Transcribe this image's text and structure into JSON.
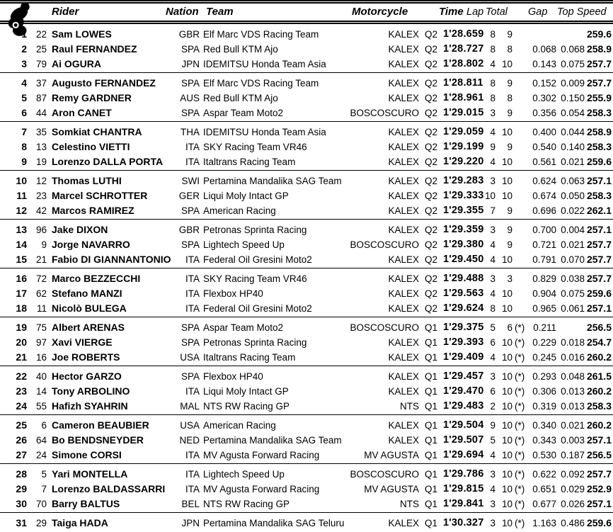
{
  "header": {
    "rider": "Rider",
    "nation": "Nation",
    "team": "Team",
    "motorcycle": "Motorcycle",
    "time": "Time",
    "lap": "Lap",
    "total": "Total",
    "gap": "Gap",
    "top_speed": "Top Speed",
    "icon": "motorcycle-racer-icon"
  },
  "colors": {
    "text": "#000000",
    "background": "#ffffff",
    "rules": "#000000"
  },
  "rows": [
    {
      "pos": "1",
      "num": "22",
      "rider": "Sam LOWES",
      "nation": "GBR",
      "team": "Elf Marc VDS Racing Team",
      "bike": "KALEX",
      "session": "Q2",
      "time": "1'28.659",
      "lap": "8",
      "total": "9",
      "star": "",
      "gap1": "",
      "gap2": "",
      "speed": "259.6"
    },
    {
      "pos": "2",
      "num": "25",
      "rider": "Raul FERNANDEZ",
      "nation": "SPA",
      "team": "Red Bull KTM Ajo",
      "bike": "KALEX",
      "session": "Q2",
      "time": "1'28.727",
      "lap": "8",
      "total": "8",
      "star": "",
      "gap1": "0.068",
      "gap2": "0.068",
      "speed": "258.9"
    },
    {
      "pos": "3",
      "num": "79",
      "rider": "Ai OGURA",
      "nation": "JPN",
      "team": "IDEMITSU Honda Team Asia",
      "bike": "KALEX",
      "session": "Q2",
      "time": "1'28.802",
      "lap": "4",
      "total": "10",
      "star": "",
      "gap1": "0.143",
      "gap2": "0.075",
      "speed": "257.7"
    },
    {
      "pos": "4",
      "num": "37",
      "rider": "Augusto FERNANDEZ",
      "nation": "SPA",
      "team": "Elf Marc VDS Racing Team",
      "bike": "KALEX",
      "session": "Q2",
      "time": "1'28.811",
      "lap": "8",
      "total": "9",
      "star": "",
      "gap1": "0.152",
      "gap2": "0.009",
      "speed": "257.7"
    },
    {
      "pos": "5",
      "num": "87",
      "rider": "Remy GARDNER",
      "nation": "AUS",
      "team": "Red Bull KTM Ajo",
      "bike": "KALEX",
      "session": "Q2",
      "time": "1'28.961",
      "lap": "8",
      "total": "8",
      "star": "",
      "gap1": "0.302",
      "gap2": "0.150",
      "speed": "255.9"
    },
    {
      "pos": "6",
      "num": "44",
      "rider": "Aron CANET",
      "nation": "SPA",
      "team": "Aspar Team Moto2",
      "bike": "BOSCOSCURO",
      "session": "Q2",
      "time": "1'29.015",
      "lap": "3",
      "total": "9",
      "star": "",
      "gap1": "0.356",
      "gap2": "0.054",
      "speed": "258.3"
    },
    {
      "pos": "7",
      "num": "35",
      "rider": "Somkiat CHANTRA",
      "nation": "THA",
      "team": "IDEMITSU Honda Team Asia",
      "bike": "KALEX",
      "session": "Q2",
      "time": "1'29.059",
      "lap": "4",
      "total": "10",
      "star": "",
      "gap1": "0.400",
      "gap2": "0.044",
      "speed": "258.9"
    },
    {
      "pos": "8",
      "num": "13",
      "rider": "Celestino VIETTI",
      "nation": "ITA",
      "team": "SKY Racing Team VR46",
      "bike": "KALEX",
      "session": "Q2",
      "time": "1'29.199",
      "lap": "9",
      "total": "9",
      "star": "",
      "gap1": "0.540",
      "gap2": "0.140",
      "speed": "258.3"
    },
    {
      "pos": "9",
      "num": "19",
      "rider": "Lorenzo DALLA PORTA",
      "nation": "ITA",
      "team": "Italtrans Racing Team",
      "bike": "KALEX",
      "session": "Q2",
      "time": "1'29.220",
      "lap": "4",
      "total": "10",
      "star": "",
      "gap1": "0.561",
      "gap2": "0.021",
      "speed": "259.6"
    },
    {
      "pos": "10",
      "num": "12",
      "rider": "Thomas LUTHI",
      "nation": "SWI",
      "team": "Pertamina Mandalika SAG Team",
      "bike": "KALEX",
      "session": "Q2",
      "time": "1'29.283",
      "lap": "3",
      "total": "10",
      "star": "",
      "gap1": "0.624",
      "gap2": "0.063",
      "speed": "257.1"
    },
    {
      "pos": "11",
      "num": "23",
      "rider": "Marcel SCHROTTER",
      "nation": "GER",
      "team": "Liqui Moly Intact GP",
      "bike": "KALEX",
      "session": "Q2",
      "time": "1'29.333",
      "lap": "10",
      "total": "10",
      "star": "",
      "gap1": "0.674",
      "gap2": "0.050",
      "speed": "258.3"
    },
    {
      "pos": "12",
      "num": "42",
      "rider": "Marcos RAMIREZ",
      "nation": "SPA",
      "team": "American Racing",
      "bike": "KALEX",
      "session": "Q2",
      "time": "1'29.355",
      "lap": "7",
      "total": "9",
      "star": "",
      "gap1": "0.696",
      "gap2": "0.022",
      "speed": "262.1"
    },
    {
      "pos": "13",
      "num": "96",
      "rider": "Jake DIXON",
      "nation": "GBR",
      "team": "Petronas Sprinta Racing",
      "bike": "KALEX",
      "session": "Q2",
      "time": "1'29.359",
      "lap": "3",
      "total": "9",
      "star": "",
      "gap1": "0.700",
      "gap2": "0.004",
      "speed": "257.1"
    },
    {
      "pos": "14",
      "num": "9",
      "rider": "Jorge NAVARRO",
      "nation": "SPA",
      "team": "Lightech Speed Up",
      "bike": "BOSCOSCURO",
      "session": "Q2",
      "time": "1'29.380",
      "lap": "4",
      "total": "9",
      "star": "",
      "gap1": "0.721",
      "gap2": "0.021",
      "speed": "257.7"
    },
    {
      "pos": "15",
      "num": "21",
      "rider": "Fabio DI GIANNANTONIO",
      "nation": "ITA",
      "team": "Federal Oil Gresini Moto2",
      "bike": "KALEX",
      "session": "Q2",
      "time": "1'29.450",
      "lap": "4",
      "total": "10",
      "star": "",
      "gap1": "0.791",
      "gap2": "0.070",
      "speed": "257.7"
    },
    {
      "pos": "16",
      "num": "72",
      "rider": "Marco BEZZECCHI",
      "nation": "ITA",
      "team": "SKY Racing Team VR46",
      "bike": "KALEX",
      "session": "Q2",
      "time": "1'29.488",
      "lap": "3",
      "total": "3",
      "star": "",
      "gap1": "0.829",
      "gap2": "0.038",
      "speed": "257.7"
    },
    {
      "pos": "17",
      "num": "62",
      "rider": "Stefano MANZI",
      "nation": "ITA",
      "team": "Flexbox HP40",
      "bike": "KALEX",
      "session": "Q2",
      "time": "1'29.563",
      "lap": "4",
      "total": "10",
      "star": "",
      "gap1": "0.904",
      "gap2": "0.075",
      "speed": "259.6"
    },
    {
      "pos": "18",
      "num": "11",
      "rider": "Nicolò BULEGA",
      "nation": "ITA",
      "team": "Federal Oil Gresini Moto2",
      "bike": "KALEX",
      "session": "Q2",
      "time": "1'29.624",
      "lap": "8",
      "total": "10",
      "star": "",
      "gap1": "0.965",
      "gap2": "0.061",
      "speed": "257.1"
    },
    {
      "pos": "19",
      "num": "75",
      "rider": "Albert ARENAS",
      "nation": "SPA",
      "team": "Aspar Team Moto2",
      "bike": "BOSCOSCURO",
      "session": "Q1",
      "time": "1'29.375",
      "lap": "5",
      "total": "6",
      "star": "(*)",
      "gap1": "0.211",
      "gap2": "",
      "speed": "256.5"
    },
    {
      "pos": "20",
      "num": "97",
      "rider": "Xavi VIERGE",
      "nation": "SPA",
      "team": "Petronas Sprinta Racing",
      "bike": "KALEX",
      "session": "Q1",
      "time": "1'29.393",
      "lap": "6",
      "total": "10",
      "star": "(*)",
      "gap1": "0.229",
      "gap2": "0.018",
      "speed": "254.7"
    },
    {
      "pos": "21",
      "num": "16",
      "rider": "Joe ROBERTS",
      "nation": "USA",
      "team": "Italtrans Racing Team",
      "bike": "KALEX",
      "session": "Q1",
      "time": "1'29.409",
      "lap": "4",
      "total": "10",
      "star": "(*)",
      "gap1": "0.245",
      "gap2": "0.016",
      "speed": "260.2"
    },
    {
      "pos": "22",
      "num": "40",
      "rider": "Hector GARZO",
      "nation": "SPA",
      "team": "Flexbox HP40",
      "bike": "KALEX",
      "session": "Q1",
      "time": "1'29.457",
      "lap": "3",
      "total": "10",
      "star": "(*)",
      "gap1": "0.293",
      "gap2": "0.048",
      "speed": "261.5"
    },
    {
      "pos": "23",
      "num": "14",
      "rider": "Tony ARBOLINO",
      "nation": "ITA",
      "team": "Liqui Moly Intact GP",
      "bike": "KALEX",
      "session": "Q1",
      "time": "1'29.470",
      "lap": "6",
      "total": "10",
      "star": "(*)",
      "gap1": "0.306",
      "gap2": "0.013",
      "speed": "260.2"
    },
    {
      "pos": "24",
      "num": "55",
      "rider": "Hafizh SYAHRIN",
      "nation": "MAL",
      "team": "NTS RW Racing GP",
      "bike": "NTS",
      "session": "Q1",
      "time": "1'29.483",
      "lap": "2",
      "total": "10",
      "star": "(*)",
      "gap1": "0.319",
      "gap2": "0.013",
      "speed": "258.3"
    },
    {
      "pos": "25",
      "num": "6",
      "rider": "Cameron BEAUBIER",
      "nation": "USA",
      "team": "American Racing",
      "bike": "KALEX",
      "session": "Q1",
      "time": "1'29.504",
      "lap": "9",
      "total": "10",
      "star": "(*)",
      "gap1": "0.340",
      "gap2": "0.021",
      "speed": "260.2"
    },
    {
      "pos": "26",
      "num": "64",
      "rider": "Bo BENDSNEYDER",
      "nation": "NED",
      "team": "Pertamina Mandalika SAG Team",
      "bike": "KALEX",
      "session": "Q1",
      "time": "1'29.507",
      "lap": "5",
      "total": "10",
      "star": "(*)",
      "gap1": "0.343",
      "gap2": "0.003",
      "speed": "257.1"
    },
    {
      "pos": "27",
      "num": "24",
      "rider": "Simone CORSI",
      "nation": "ITA",
      "team": "MV Agusta Forward Racing",
      "bike": "MV AGUSTA",
      "session": "Q1",
      "time": "1'29.694",
      "lap": "4",
      "total": "10",
      "star": "(*)",
      "gap1": "0.530",
      "gap2": "0.187",
      "speed": "256.5"
    },
    {
      "pos": "28",
      "num": "5",
      "rider": "Yari MONTELLA",
      "nation": "ITA",
      "team": "Lightech Speed Up",
      "bike": "BOSCOSCURO",
      "session": "Q1",
      "time": "1'29.786",
      "lap": "3",
      "total": "10",
      "star": "(*)",
      "gap1": "0.622",
      "gap2": "0.092",
      "speed": "257.7"
    },
    {
      "pos": "29",
      "num": "7",
      "rider": "Lorenzo BALDASSARRI",
      "nation": "ITA",
      "team": "MV Agusta Forward Racing",
      "bike": "MV AGUSTA",
      "session": "Q1",
      "time": "1'29.815",
      "lap": "4",
      "total": "10",
      "star": "(*)",
      "gap1": "0.651",
      "gap2": "0.029",
      "speed": "252.9"
    },
    {
      "pos": "30",
      "num": "70",
      "rider": "Barry BALTUS",
      "nation": "BEL",
      "team": "NTS RW Racing GP",
      "bike": "NTS",
      "session": "Q1",
      "time": "1'29.841",
      "lap": "3",
      "total": "10",
      "star": "(*)",
      "gap1": "0.677",
      "gap2": "0.026",
      "speed": "257.1"
    },
    {
      "pos": "31",
      "num": "29",
      "rider": "Taiga HADA",
      "nation": "JPN",
      "team": "Pertamina Mandalika SAG Teluru",
      "bike": "KALEX",
      "session": "Q1",
      "time": "1'30.327",
      "lap": "3",
      "total": "10",
      "star": "(*)",
      "gap1": "1.163",
      "gap2": "0.486",
      "speed": "259.6"
    }
  ]
}
